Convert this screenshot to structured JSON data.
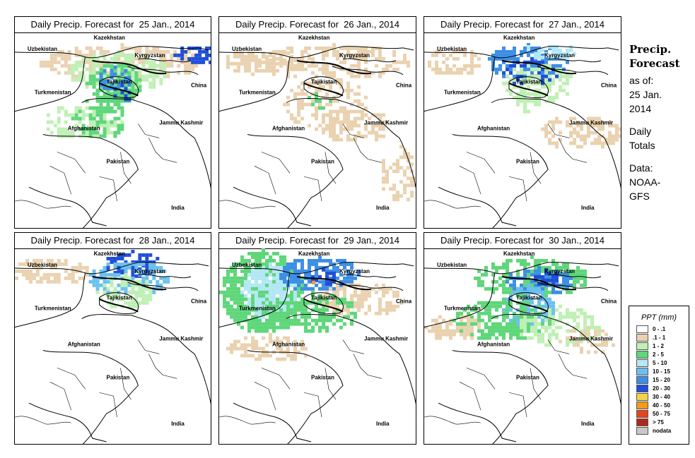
{
  "panels": [
    {
      "title": "Daily Precip. Forecast for  25 Jan., 2014"
    },
    {
      "title": "Daily Precip. Forecast for  26 Jan., 2014"
    },
    {
      "title": "Daily Precip. Forecast for  27 Jan., 2014"
    },
    {
      "title": "Daily Precip. Forecast for  28 Jan., 2014"
    },
    {
      "title": "Daily Precip. Forecast for  29 Jan., 2014"
    },
    {
      "title": "Daily Precip. Forecast for  30 Jan., 2014"
    }
  ],
  "map_labels": {
    "kazakhstan": "Kazekhstan",
    "uzbekistan": "Uzbekistan",
    "kyrgyzstan": "Kyrgyzstan",
    "tajikistan": "Tajikistan",
    "turkmenistan": "Turkmenistan",
    "china": "China",
    "afghanistan": "Afghanistan",
    "jammu_kashmir": "Jammu Kashmir",
    "pakistan": "Pakistan",
    "india": "India"
  },
  "side": {
    "title_line1": "Precip.",
    "title_line2": "Forecast",
    "asof_line1": "as of:",
    "asof_line2": "25 Jan.",
    "asof_line3": "2014",
    "daily_line1": "Daily",
    "daily_line2": "Totals",
    "data_line1": "Data:",
    "data_line2": "NOAA-",
    "data_line3": "GFS"
  },
  "legend": {
    "title": "PPT (mm)",
    "items": [
      {
        "label": "0 - .1",
        "color": "#ffffff"
      },
      {
        "label": ".1 - 1",
        "color": "#ead2b0"
      },
      {
        "label": "1 - 2",
        "color": "#bff0b4"
      },
      {
        "label": "2 - 5",
        "color": "#5fd67a"
      },
      {
        "label": "5 - 10",
        "color": "#b4e8f8"
      },
      {
        "label": "10 - 15",
        "color": "#6cc0ee"
      },
      {
        "label": "15 - 20",
        "color": "#3d8ee6"
      },
      {
        "label": "20 - 30",
        "color": "#1f4fd8"
      },
      {
        "label": "30 - 40",
        "color": "#f3d34a"
      },
      {
        "label": "40 - 50",
        "color": "#f39a1c"
      },
      {
        "label": "50 - 75",
        "color": "#e8441a"
      },
      {
        "label": "> 75",
        "color": "#b0281c"
      },
      {
        "label": "nodata",
        "color": "#c8c8c8"
      }
    ]
  }
}
